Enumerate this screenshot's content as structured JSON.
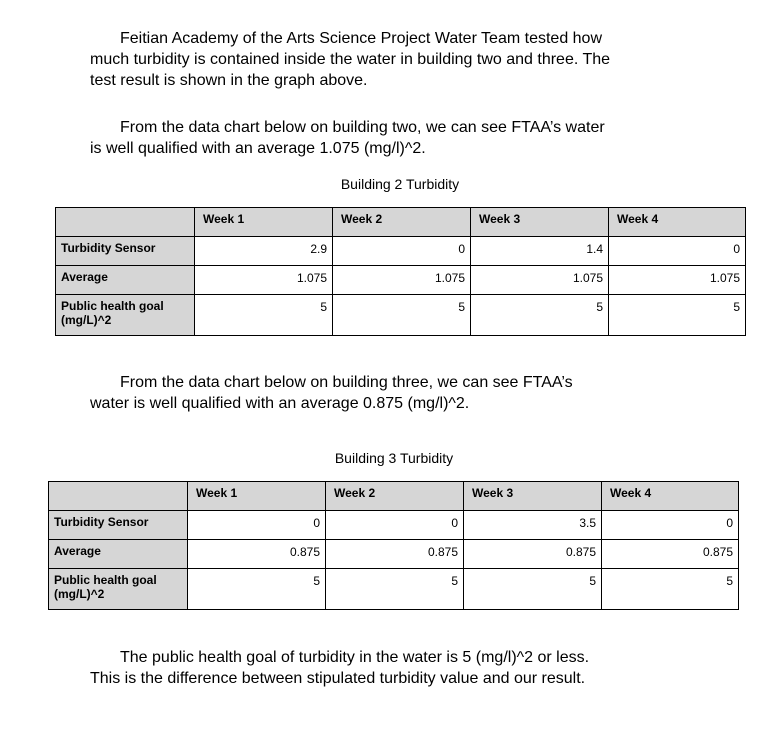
{
  "intro": {
    "line1": "Feitian Academy of the Arts Science Project Water Team tested how",
    "line2": "much turbidity is contained inside the water in building two and three. The",
    "line3": "test result is shown in the graph above."
  },
  "building2_text": {
    "line1": "From the data chart below on building two, we can see FTAA’s water",
    "line2": "is well qualified with an average 1.075 (mg/l)^2."
  },
  "building2_table": {
    "title": "Building 2 Turbidity",
    "columns": [
      "Week 1",
      "Week 2",
      "Week 3",
      "Week 4"
    ],
    "rows": [
      {
        "label": "Turbidity Sensor",
        "values": [
          "2.9",
          "0",
          "1.4",
          "0"
        ]
      },
      {
        "label": "Average",
        "values": [
          "1.075",
          "1.075",
          "1.075",
          "1.075"
        ]
      },
      {
        "label": "Public health goal (mg/L)^2",
        "values": [
          "5",
          "5",
          "5",
          "5"
        ]
      }
    ]
  },
  "building3_text": {
    "line1": "From the data chart below on building three, we can see FTAA’s",
    "line2": "water is well qualified with an average 0.875 (mg/l)^2."
  },
  "building3_table": {
    "title": "Building 3 Turbidity",
    "columns": [
      "Week 1",
      "Week 2",
      "Week 3",
      "Week 4"
    ],
    "rows": [
      {
        "label": "Turbidity Sensor",
        "values": [
          "0",
          "0",
          "3.5",
          "0"
        ]
      },
      {
        "label": "Average",
        "values": [
          "0.875",
          "0.875",
          "0.875",
          "0.875"
        ]
      },
      {
        "label": "Public health goal (mg/L)^2",
        "values": [
          "5",
          "5",
          "5",
          "5"
        ]
      }
    ]
  },
  "conclusion": {
    "line1": "The public health goal of turbidity in the water is 5 (mg/l)^2 or less.",
    "line2": "This is the difference between stipulated turbidity value and our result."
  }
}
